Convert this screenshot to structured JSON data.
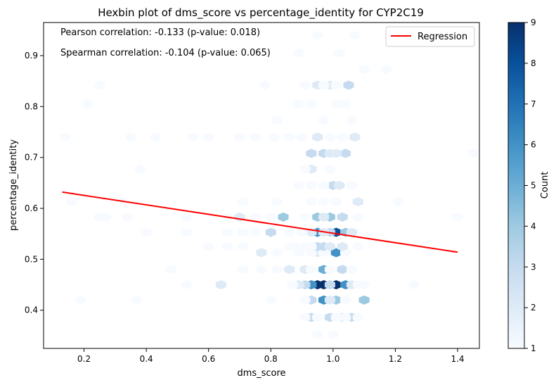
{
  "chart_data": {
    "type": "hexbin",
    "title": "Hexbin plot of dms_score vs percentage_identity for CYP2C19",
    "xlabel": "dms_score",
    "ylabel": "percentage_identity",
    "xlim": [
      0.07,
      1.47
    ],
    "ylim": [
      0.325,
      0.965
    ],
    "xticks": [
      "0.2",
      "0.4",
      "0.6",
      "0.8",
      "1.0",
      "1.2",
      "1.4"
    ],
    "yticks": [
      "0.4",
      "0.5",
      "0.6",
      "0.7",
      "0.8",
      "0.9"
    ],
    "colormap": "Blues",
    "colorbar": {
      "label": "Count",
      "range": [
        1,
        9
      ],
      "ticks": [
        "1",
        "2",
        "3",
        "4",
        "5",
        "6",
        "7",
        "8",
        "9"
      ]
    },
    "annotations": [
      "Pearson correlation: -0.133 (p-value: 0.018)",
      "Spearman correlation: -0.104 (p-value: 0.065)"
    ],
    "legend": {
      "position": "top-right",
      "entries": [
        {
          "name": "Regression",
          "color": "#ff0000"
        }
      ]
    },
    "regression": {
      "color": "#ff0000",
      "x": [
        0.13,
        1.4
      ],
      "y": [
        0.632,
        0.514
      ]
    },
    "hexbins": [
      {
        "x": 0.95,
        "y": 0.45,
        "count": 9
      },
      {
        "x": 0.97,
        "y": 0.45,
        "count": 9
      },
      {
        "x": 1.01,
        "y": 0.45,
        "count": 9
      },
      {
        "x": 0.93,
        "y": 0.45,
        "count": 6
      },
      {
        "x": 1.04,
        "y": 0.45,
        "count": 6
      },
      {
        "x": 0.91,
        "y": 0.45,
        "count": 3
      },
      {
        "x": 0.99,
        "y": 0.45,
        "count": 3
      },
      {
        "x": 0.89,
        "y": 0.45,
        "count": 2
      },
      {
        "x": 1.06,
        "y": 0.45,
        "count": 2
      },
      {
        "x": 0.87,
        "y": 0.45,
        "count": 1
      },
      {
        "x": 1.08,
        "y": 0.45,
        "count": 1
      },
      {
        "x": 1.1,
        "y": 0.45,
        "count": 1
      },
      {
        "x": 0.64,
        "y": 0.45,
        "count": 2
      },
      {
        "x": 0.53,
        "y": 0.45,
        "count": 1
      },
      {
        "x": 1.26,
        "y": 0.45,
        "count": 1
      },
      {
        "x": 0.97,
        "y": 0.42,
        "count": 6
      },
      {
        "x": 1.01,
        "y": 0.42,
        "count": 4
      },
      {
        "x": 0.93,
        "y": 0.42,
        "count": 3
      },
      {
        "x": 1.1,
        "y": 0.42,
        "count": 4
      },
      {
        "x": 0.99,
        "y": 0.42,
        "count": 2
      },
      {
        "x": 1.04,
        "y": 0.42,
        "count": 1
      },
      {
        "x": 0.91,
        "y": 0.42,
        "count": 1
      },
      {
        "x": 0.8,
        "y": 0.42,
        "count": 1
      },
      {
        "x": 0.19,
        "y": 0.42,
        "count": 1
      },
      {
        "x": 0.37,
        "y": 0.42,
        "count": 1
      },
      {
        "x": 0.93,
        "y": 0.386,
        "count": 3
      },
      {
        "x": 0.99,
        "y": 0.386,
        "count": 3
      },
      {
        "x": 1.03,
        "y": 0.386,
        "count": 2
      },
      {
        "x": 1.06,
        "y": 0.386,
        "count": 3
      },
      {
        "x": 0.91,
        "y": 0.386,
        "count": 1
      },
      {
        "x": 0.95,
        "y": 0.386,
        "count": 1
      },
      {
        "x": 1.01,
        "y": 0.386,
        "count": 1
      },
      {
        "x": 1.04,
        "y": 0.386,
        "count": 1
      },
      {
        "x": 1.08,
        "y": 0.386,
        "count": 1
      },
      {
        "x": 0.95,
        "y": 0.352,
        "count": 1
      },
      {
        "x": 1.0,
        "y": 0.352,
        "count": 1
      },
      {
        "x": 0.97,
        "y": 0.48,
        "count": 5
      },
      {
        "x": 1.03,
        "y": 0.48,
        "count": 3
      },
      {
        "x": 0.91,
        "y": 0.48,
        "count": 2
      },
      {
        "x": 0.86,
        "y": 0.48,
        "count": 2
      },
      {
        "x": 0.93,
        "y": 0.48,
        "count": 1
      },
      {
        "x": 0.99,
        "y": 0.48,
        "count": 1
      },
      {
        "x": 0.77,
        "y": 0.48,
        "count": 1
      },
      {
        "x": 0.71,
        "y": 0.48,
        "count": 1
      },
      {
        "x": 0.48,
        "y": 0.48,
        "count": 1
      },
      {
        "x": 1.06,
        "y": 0.48,
        "count": 1
      },
      {
        "x": 0.82,
        "y": 0.48,
        "count": 1
      },
      {
        "x": 0.77,
        "y": 0.513,
        "count": 2
      },
      {
        "x": 1.01,
        "y": 0.513,
        "count": 6
      },
      {
        "x": 0.95,
        "y": 0.513,
        "count": 2
      },
      {
        "x": 0.97,
        "y": 0.513,
        "count": 1
      },
      {
        "x": 0.93,
        "y": 0.513,
        "count": 1
      },
      {
        "x": 0.89,
        "y": 0.513,
        "count": 1
      },
      {
        "x": 1.04,
        "y": 0.513,
        "count": 1
      },
      {
        "x": 0.82,
        "y": 0.513,
        "count": 1
      },
      {
        "x": 0.97,
        "y": 0.525,
        "count": 3
      },
      {
        "x": 1.03,
        "y": 0.525,
        "count": 2
      },
      {
        "x": 0.95,
        "y": 0.525,
        "count": 3
      },
      {
        "x": 0.99,
        "y": 0.525,
        "count": 2
      },
      {
        "x": 0.91,
        "y": 0.525,
        "count": 1
      },
      {
        "x": 0.93,
        "y": 0.525,
        "count": 1
      },
      {
        "x": 0.86,
        "y": 0.525,
        "count": 1
      },
      {
        "x": 0.6,
        "y": 0.525,
        "count": 1
      },
      {
        "x": 0.66,
        "y": 0.525,
        "count": 1
      },
      {
        "x": 0.71,
        "y": 0.525,
        "count": 1
      },
      {
        "x": 0.88,
        "y": 0.525,
        "count": 1
      },
      {
        "x": 1.08,
        "y": 0.525,
        "count": 1
      },
      {
        "x": 0.95,
        "y": 0.553,
        "count": 6
      },
      {
        "x": 1.01,
        "y": 0.553,
        "count": 8
      },
      {
        "x": 1.04,
        "y": 0.553,
        "count": 4
      },
      {
        "x": 0.99,
        "y": 0.553,
        "count": 3
      },
      {
        "x": 0.97,
        "y": 0.553,
        "count": 2
      },
      {
        "x": 0.93,
        "y": 0.553,
        "count": 2
      },
      {
        "x": 0.8,
        "y": 0.553,
        "count": 3
      },
      {
        "x": 0.75,
        "y": 0.553,
        "count": 1
      },
      {
        "x": 0.71,
        "y": 0.553,
        "count": 1
      },
      {
        "x": 0.86,
        "y": 0.553,
        "count": 1
      },
      {
        "x": 0.9,
        "y": 0.553,
        "count": 1
      },
      {
        "x": 0.53,
        "y": 0.553,
        "count": 1
      },
      {
        "x": 0.4,
        "y": 0.553,
        "count": 1
      },
      {
        "x": 0.66,
        "y": 0.553,
        "count": 1
      },
      {
        "x": 1.06,
        "y": 0.553,
        "count": 2
      },
      {
        "x": 0.95,
        "y": 0.583,
        "count": 4
      },
      {
        "x": 0.99,
        "y": 0.583,
        "count": 4
      },
      {
        "x": 0.97,
        "y": 0.583,
        "count": 2
      },
      {
        "x": 1.03,
        "y": 0.583,
        "count": 3
      },
      {
        "x": 0.84,
        "y": 0.583,
        "count": 4
      },
      {
        "x": 0.7,
        "y": 0.583,
        "count": 2
      },
      {
        "x": 1.08,
        "y": 0.583,
        "count": 1
      },
      {
        "x": 0.91,
        "y": 0.583,
        "count": 1
      },
      {
        "x": 0.8,
        "y": 0.583,
        "count": 1
      },
      {
        "x": 0.75,
        "y": 0.583,
        "count": 1
      },
      {
        "x": 0.66,
        "y": 0.583,
        "count": 1
      },
      {
        "x": 0.53,
        "y": 0.583,
        "count": 1
      },
      {
        "x": 0.34,
        "y": 0.583,
        "count": 1
      },
      {
        "x": 0.25,
        "y": 0.583,
        "count": 1
      },
      {
        "x": 0.27,
        "y": 0.583,
        "count": 1
      },
      {
        "x": 1.4,
        "y": 0.583,
        "count": 1
      },
      {
        "x": 1.08,
        "y": 0.613,
        "count": 2
      },
      {
        "x": 0.97,
        "y": 0.613,
        "count": 1
      },
      {
        "x": 1.01,
        "y": 0.613,
        "count": 1
      },
      {
        "x": 0.93,
        "y": 0.613,
        "count": 1
      },
      {
        "x": 0.82,
        "y": 0.613,
        "count": 1
      },
      {
        "x": 0.71,
        "y": 0.613,
        "count": 1
      },
      {
        "x": 0.16,
        "y": 0.613,
        "count": 1
      },
      {
        "x": 0.33,
        "y": 0.613,
        "count": 1
      },
      {
        "x": 1.21,
        "y": 0.613,
        "count": 1
      },
      {
        "x": 1.0,
        "y": 0.645,
        "count": 3
      },
      {
        "x": 1.02,
        "y": 0.645,
        "count": 2
      },
      {
        "x": 0.97,
        "y": 0.645,
        "count": 1
      },
      {
        "x": 0.89,
        "y": 0.645,
        "count": 1
      },
      {
        "x": 0.93,
        "y": 0.645,
        "count": 1
      },
      {
        "x": 1.06,
        "y": 0.645,
        "count": 1
      },
      {
        "x": 0.93,
        "y": 0.677,
        "count": 2
      },
      {
        "x": 0.91,
        "y": 0.677,
        "count": 1
      },
      {
        "x": 0.99,
        "y": 0.677,
        "count": 1
      },
      {
        "x": 0.38,
        "y": 0.677,
        "count": 1
      },
      {
        "x": 0.93,
        "y": 0.708,
        "count": 3
      },
      {
        "x": 0.97,
        "y": 0.708,
        "count": 3
      },
      {
        "x": 1.04,
        "y": 0.708,
        "count": 3
      },
      {
        "x": 1.01,
        "y": 0.708,
        "count": 2
      },
      {
        "x": 0.99,
        "y": 0.708,
        "count": 2
      },
      {
        "x": 1.45,
        "y": 0.708,
        "count": 1
      },
      {
        "x": 0.95,
        "y": 0.74,
        "count": 2
      },
      {
        "x": 1.07,
        "y": 0.74,
        "count": 2
      },
      {
        "x": 0.9,
        "y": 0.74,
        "count": 1
      },
      {
        "x": 0.86,
        "y": 0.74,
        "count": 1
      },
      {
        "x": 0.81,
        "y": 0.74,
        "count": 1
      },
      {
        "x": 0.75,
        "y": 0.74,
        "count": 1
      },
      {
        "x": 0.7,
        "y": 0.74,
        "count": 1
      },
      {
        "x": 0.6,
        "y": 0.74,
        "count": 1
      },
      {
        "x": 0.55,
        "y": 0.74,
        "count": 1
      },
      {
        "x": 0.43,
        "y": 0.74,
        "count": 1
      },
      {
        "x": 0.35,
        "y": 0.74,
        "count": 1
      },
      {
        "x": 0.14,
        "y": 0.74,
        "count": 1
      },
      {
        "x": 0.99,
        "y": 0.74,
        "count": 1
      },
      {
        "x": 1.03,
        "y": 0.74,
        "count": 1
      },
      {
        "x": 0.97,
        "y": 0.773,
        "count": 1
      },
      {
        "x": 0.82,
        "y": 0.773,
        "count": 1
      },
      {
        "x": 1.06,
        "y": 0.773,
        "count": 1
      },
      {
        "x": 0.93,
        "y": 0.805,
        "count": 1
      },
      {
        "x": 0.89,
        "y": 0.805,
        "count": 1
      },
      {
        "x": 1.01,
        "y": 0.805,
        "count": 1
      },
      {
        "x": 1.04,
        "y": 0.805,
        "count": 1
      },
      {
        "x": 0.21,
        "y": 0.805,
        "count": 1
      },
      {
        "x": 0.95,
        "y": 0.842,
        "count": 2
      },
      {
        "x": 1.05,
        "y": 0.842,
        "count": 3
      },
      {
        "x": 0.99,
        "y": 0.842,
        "count": 2
      },
      {
        "x": 0.91,
        "y": 0.842,
        "count": 1
      },
      {
        "x": 1.01,
        "y": 0.842,
        "count": 1
      },
      {
        "x": 0.97,
        "y": 0.842,
        "count": 1
      },
      {
        "x": 0.78,
        "y": 0.842,
        "count": 1
      },
      {
        "x": 0.25,
        "y": 0.842,
        "count": 1
      },
      {
        "x": 1.1,
        "y": 0.873,
        "count": 1
      },
      {
        "x": 1.17,
        "y": 0.873,
        "count": 1
      },
      {
        "x": 0.89,
        "y": 0.905,
        "count": 1
      },
      {
        "x": 1.02,
        "y": 0.905,
        "count": 1
      },
      {
        "x": 0.95,
        "y": 0.94,
        "count": 1
      },
      {
        "x": 1.07,
        "y": 0.94,
        "count": 1
      }
    ]
  }
}
